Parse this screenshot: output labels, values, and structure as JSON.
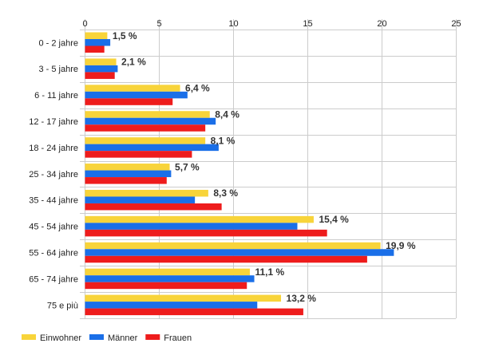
{
  "chart_data": {
    "type": "bar",
    "orientation": "horizontal",
    "categories": [
      "0 - 2 jahre",
      "3 - 5 jahre",
      "6 - 11 jahre",
      "12 - 17 jahre",
      "18 - 24 jahre",
      "25 - 34 jahre",
      "35 - 44 jahre",
      "45 - 54 jahre",
      "55 - 64 jahre",
      "65 - 74 jahre",
      "75 e più"
    ],
    "series": [
      {
        "name": "Einwohner",
        "color": "#f8d43a",
        "values": [
          1.5,
          2.1,
          6.4,
          8.4,
          8.1,
          5.7,
          8.3,
          15.4,
          19.9,
          11.1,
          13.2
        ]
      },
      {
        "name": "Männer",
        "color": "#1a6fe8",
        "values": [
          1.7,
          2.2,
          6.9,
          8.8,
          9.0,
          5.8,
          7.4,
          14.3,
          20.8,
          11.4,
          11.6
        ]
      },
      {
        "name": "Frauen",
        "color": "#ee1c1c",
        "values": [
          1.3,
          2.0,
          5.9,
          8.1,
          7.2,
          5.5,
          9.2,
          16.3,
          19.0,
          10.9,
          14.7
        ]
      }
    ],
    "data_labels": [
      "1,5 %",
      "2,1 %",
      "6,4 %",
      "8,4 %",
      "8,1 %",
      "5,7 %",
      "8,3 %",
      "15,4 %",
      "19,9 %",
      "11,1 %",
      "13,2 %"
    ],
    "xlim": [
      0,
      25
    ],
    "xticks": [
      0,
      5,
      10,
      15,
      20,
      25
    ],
    "x_axis_position": "top",
    "grid": true,
    "legend_position": "bottom-left",
    "title": "",
    "xlabel": "",
    "ylabel": ""
  }
}
